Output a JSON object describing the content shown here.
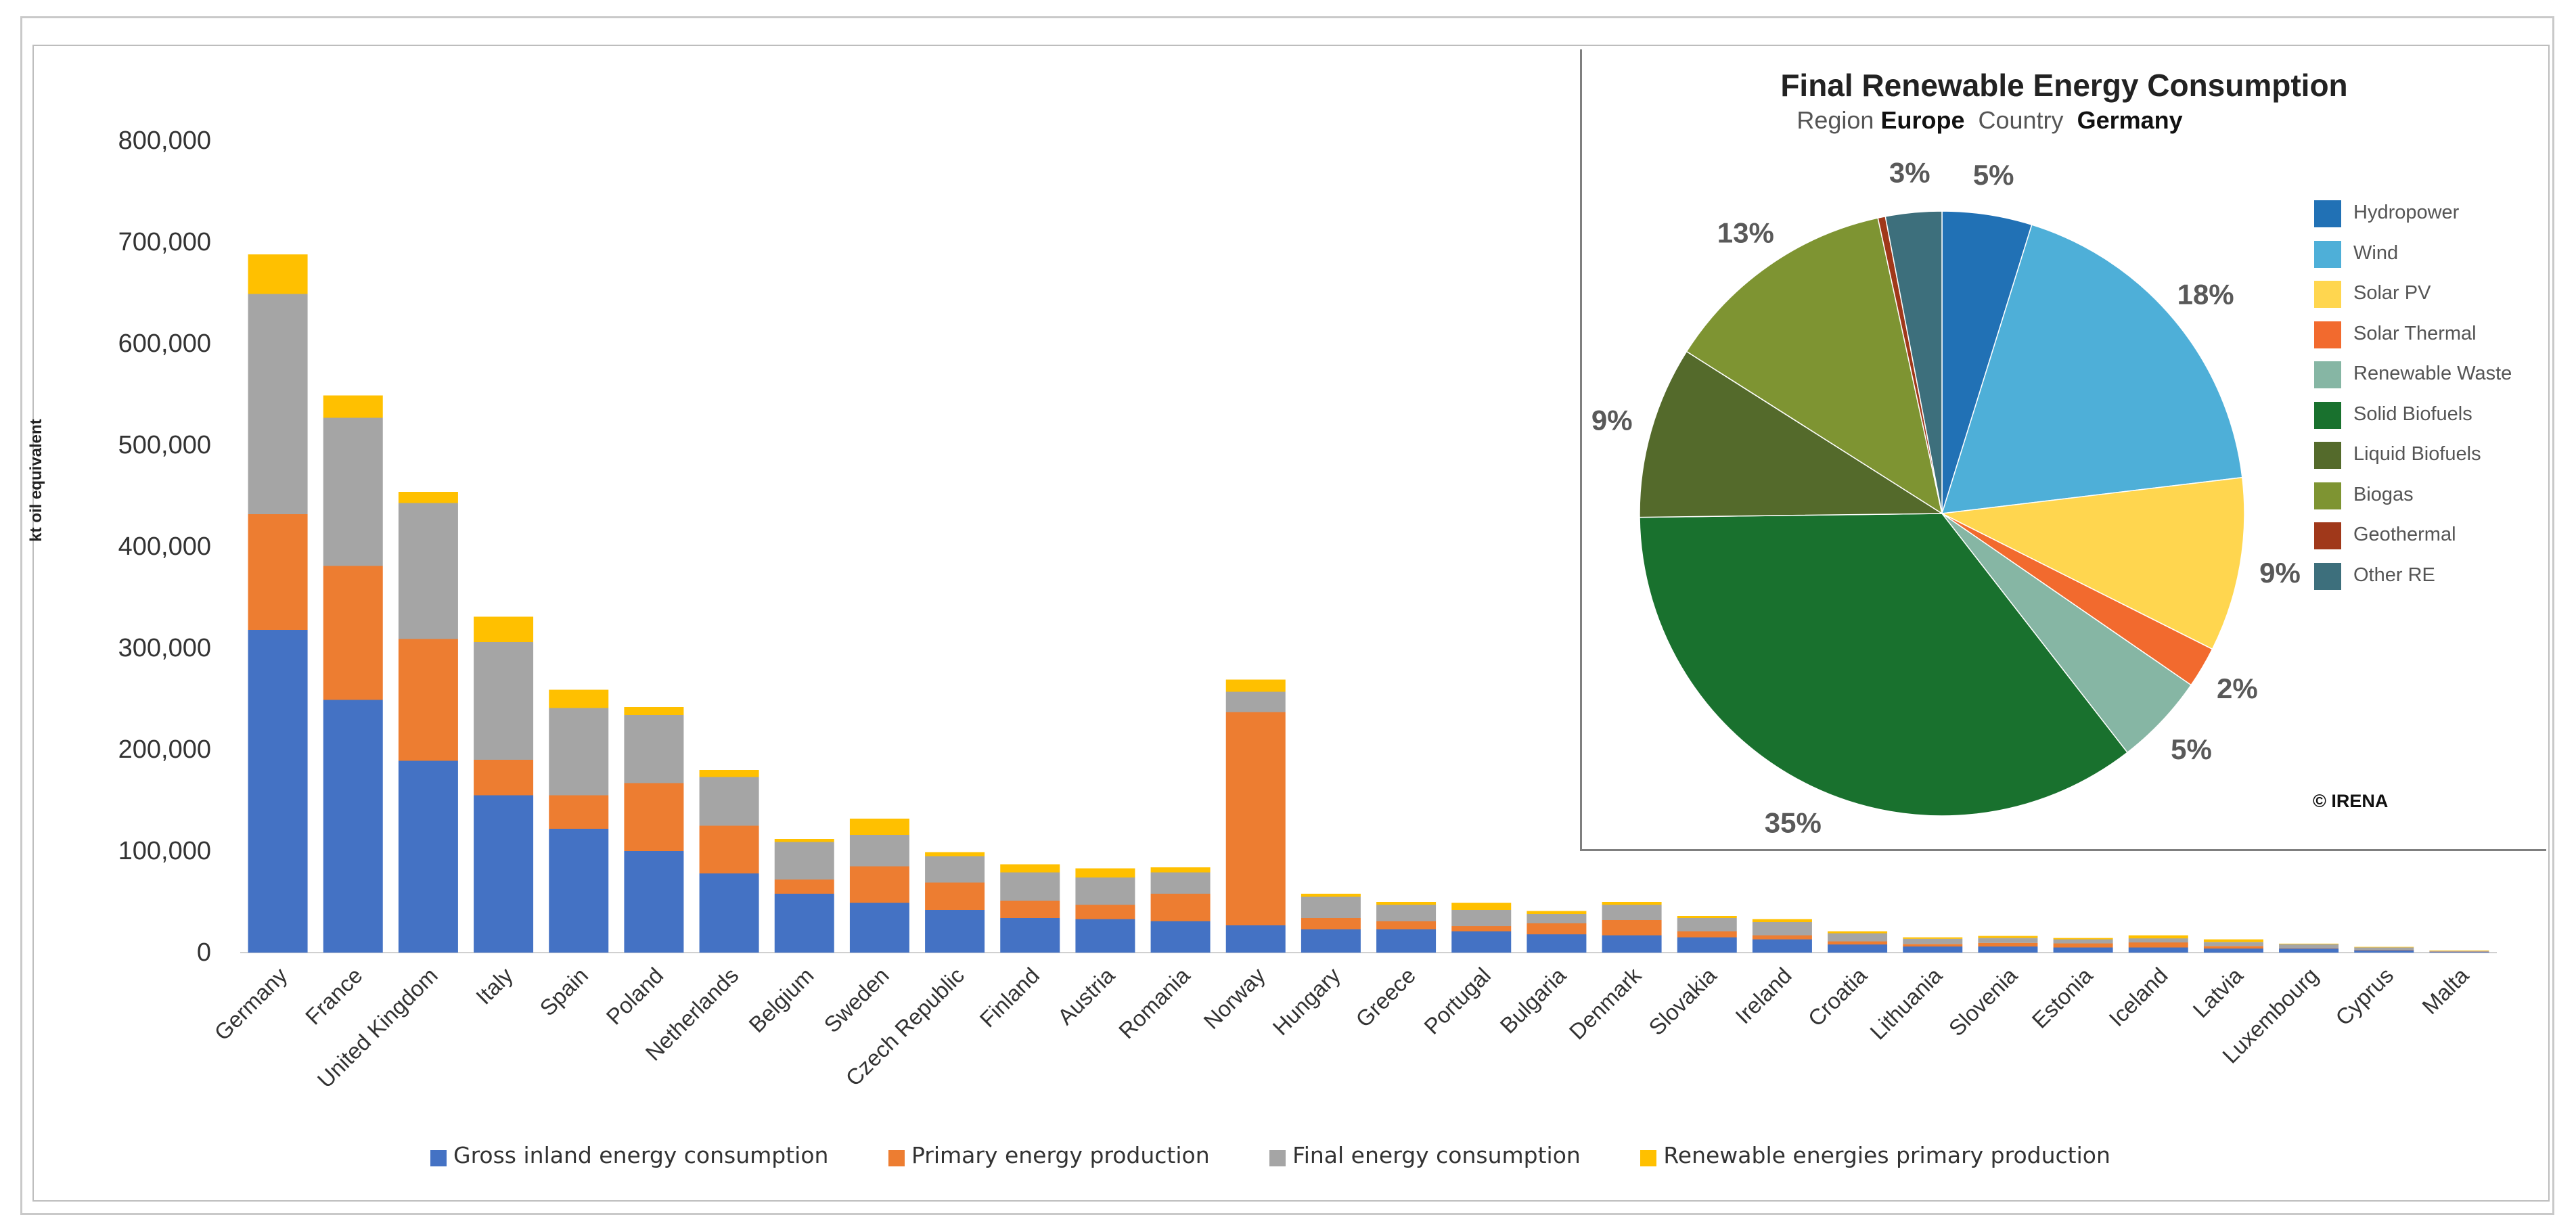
{
  "chart_data": [
    {
      "type": "bar",
      "stacked": true,
      "title": "",
      "xlabel": "",
      "ylabel": "kt oil equivalent",
      "ylim": [
        0,
        800000
      ],
      "yticks": [
        "0",
        "100,000",
        "200,000",
        "300,000",
        "400,000",
        "500,000",
        "600,000",
        "700,000",
        "800,000"
      ],
      "ytick_values": [
        0,
        100000,
        200000,
        300000,
        400000,
        500000,
        600000,
        700000,
        800000
      ],
      "grid": false,
      "legend_position": "bottom",
      "categories": [
        "Germany",
        "France",
        "United Kingdom",
        "Italy",
        "Spain",
        "Poland",
        "Netherlands",
        "Belgium",
        "Sweden",
        "Czech Republic",
        "Finland",
        "Austria",
        "Romania",
        "Norway",
        "Hungary",
        "Greece",
        "Portugal",
        "Bulgaria",
        "Denmark",
        "Slovakia",
        "Ireland",
        "Croatia",
        "Lithuania",
        "Slovenia",
        "Estonia",
        "Iceland",
        "Latvia",
        "Luxembourg",
        "Cyprus",
        "Malta"
      ],
      "series": [
        {
          "name": "Gross inland energy consumption",
          "color": "#4472C4",
          "values": [
            318000,
            249000,
            189000,
            155000,
            122000,
            100000,
            78000,
            58000,
            49000,
            42000,
            34000,
            33000,
            31000,
            27000,
            23000,
            23000,
            21000,
            18000,
            17000,
            15000,
            13000,
            8000,
            6000,
            6000,
            5000,
            5000,
            4000,
            4000,
            2500,
            800
          ]
        },
        {
          "name": "Primary energy production",
          "color": "#ED7D31",
          "values": [
            114000,
            132000,
            120000,
            35000,
            33000,
            67000,
            47000,
            14000,
            36000,
            27000,
            17000,
            14000,
            27000,
            210000,
            11000,
            8000,
            5000,
            11000,
            15000,
            6000,
            4000,
            3000,
            2500,
            3500,
            4000,
            5000,
            2500,
            300,
            100,
            100
          ]
        },
        {
          "name": "Final energy consumption",
          "color": "#A5A5A5",
          "values": [
            217000,
            146000,
            134000,
            116000,
            86000,
            67000,
            48000,
            37000,
            31000,
            26000,
            28000,
            27000,
            21000,
            20000,
            21000,
            16000,
            16000,
            9000,
            15000,
            13000,
            13000,
            8000,
            5000,
            5000,
            4000,
            4000,
            4000,
            4000,
            2500,
            700
          ]
        },
        {
          "name": "Renewable energies primary production",
          "color": "#FFC000",
          "values": [
            39000,
            22000,
            11000,
            25000,
            18000,
            8000,
            7000,
            3000,
            16000,
            4000,
            8000,
            9000,
            5000,
            12000,
            3000,
            3000,
            7000,
            3000,
            3000,
            2000,
            3000,
            2000,
            1500,
            2000,
            1500,
            3000,
            2500,
            500,
            500,
            500
          ]
        }
      ]
    },
    {
      "type": "pie",
      "title": "Final Renewable Energy Consumption",
      "subtitle": {
        "region_label": "Region",
        "region": "Europe",
        "country_label": "Country",
        "country": "Germany"
      },
      "legend_position": "right",
      "start_angle_deg": 0,
      "direction": "clockwise",
      "slices": [
        {
          "name": "Hydropower",
          "value": 4.8,
          "label": "5%",
          "color": "#2171B5"
        },
        {
          "name": "Wind",
          "value": 18.3,
          "label": "18%",
          "color": "#4EAFD8"
        },
        {
          "name": "Solar PV",
          "value": 9.3,
          "label": "9%",
          "color": "#FFD64F"
        },
        {
          "name": "Solar Thermal",
          "value": 2.2,
          "label": "2%",
          "color": "#F26A2E"
        },
        {
          "name": "Renewable Waste",
          "value": 4.9,
          "label": "5%",
          "color": "#86B6A4"
        },
        {
          "name": "Solid Biofuels",
          "value": 35.3,
          "label": "35%",
          "color": "#19712E"
        },
        {
          "name": "Liquid Biofuels",
          "value": 9.2,
          "label": "9%",
          "color": "#546A2B"
        },
        {
          "name": "Biogas",
          "value": 12.6,
          "label": "13%",
          "color": "#7E9432"
        },
        {
          "name": "Geothermal",
          "value": 0.4,
          "label": "",
          "color": "#A0381A"
        },
        {
          "name": "Other RE",
          "value": 3.0,
          "label": "3%",
          "color": "#3D6F7C"
        }
      ],
      "copyright": "© IRENA"
    }
  ]
}
